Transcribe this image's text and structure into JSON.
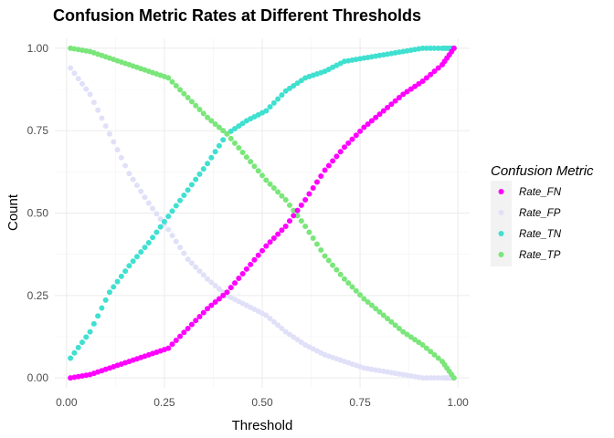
{
  "chart_data": {
    "type": "scatter",
    "title": "Confusion Metric Rates at Different Thresholds",
    "xlabel": "Threshold",
    "ylabel": "Count",
    "xlim": [
      0,
      1
    ],
    "ylim": [
      0,
      1
    ],
    "x_ticks": [
      "0.00",
      "0.25",
      "0.50",
      "0.75",
      "1.00"
    ],
    "y_ticks": [
      "0.00",
      "0.25",
      "0.50",
      "0.75",
      "1.00"
    ],
    "x_tick_values": [
      0,
      0.25,
      0.5,
      0.75,
      1.0
    ],
    "y_tick_values": [
      0,
      0.25,
      0.5,
      0.75,
      1.0
    ],
    "grid": true,
    "legend": {
      "title": "Confusion Metric",
      "placement": "right"
    },
    "x": [
      0.01,
      0.06,
      0.11,
      0.16,
      0.21,
      0.26,
      0.31,
      0.36,
      0.41,
      0.46,
      0.51,
      0.56,
      0.61,
      0.66,
      0.71,
      0.76,
      0.81,
      0.86,
      0.91,
      0.96,
      0.99
    ],
    "series": [
      {
        "name": "Rate_FN",
        "color": "#ff00ff",
        "values": [
          0.0,
          0.01,
          0.03,
          0.05,
          0.07,
          0.09,
          0.15,
          0.21,
          0.26,
          0.33,
          0.4,
          0.46,
          0.54,
          0.63,
          0.7,
          0.76,
          0.81,
          0.86,
          0.9,
          0.95,
          1.0
        ]
      },
      {
        "name": "Rate_FP",
        "color": "#e0e0f8",
        "values": [
          0.94,
          0.86,
          0.74,
          0.62,
          0.53,
          0.45,
          0.36,
          0.3,
          0.25,
          0.22,
          0.19,
          0.14,
          0.1,
          0.07,
          0.05,
          0.03,
          0.02,
          0.01,
          0.0,
          0.0,
          0.0
        ]
      },
      {
        "name": "Rate_TN",
        "color": "#40e0d0",
        "values": [
          0.06,
          0.14,
          0.26,
          0.34,
          0.41,
          0.49,
          0.57,
          0.65,
          0.74,
          0.78,
          0.81,
          0.87,
          0.91,
          0.93,
          0.96,
          0.97,
          0.98,
          0.99,
          1.0,
          1.0,
          1.0
        ]
      },
      {
        "name": "Rate_TP",
        "color": "#7ae67a",
        "values": [
          1.0,
          0.99,
          0.97,
          0.95,
          0.93,
          0.91,
          0.85,
          0.79,
          0.74,
          0.67,
          0.6,
          0.54,
          0.46,
          0.37,
          0.3,
          0.24,
          0.19,
          0.14,
          0.1,
          0.05,
          0.0
        ]
      }
    ]
  }
}
